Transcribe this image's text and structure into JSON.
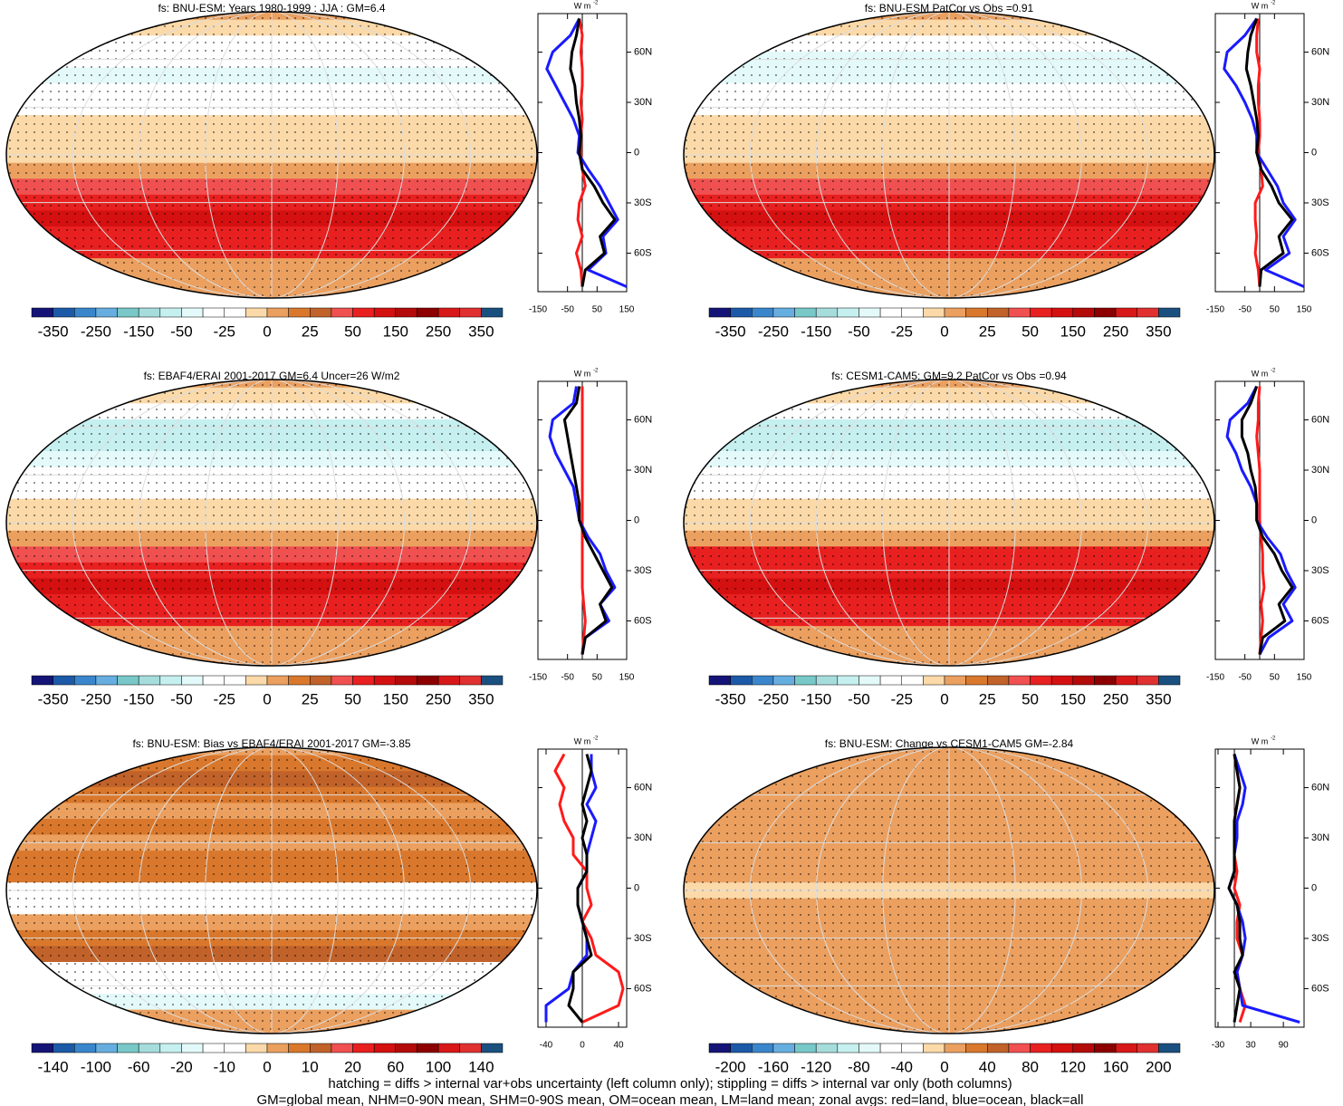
{
  "chart_data": [
    {
      "type": "zonal-map",
      "title": "fs: BNU-ESM: Years 1980-1999 : JJA : GM=6.4",
      "units": "W m",
      "units_sup": "-2",
      "colorbar_labels": [
        -350,
        -250,
        -150,
        -50,
        -25,
        0,
        25,
        50,
        150,
        250,
        350
      ],
      "lat": [
        80,
        70,
        60,
        50,
        40,
        30,
        20,
        10,
        0,
        -10,
        -20,
        -30,
        -40,
        -50,
        -60,
        -70,
        -80
      ],
      "xlim": [
        -150,
        150
      ],
      "xticks": [
        -150,
        -50,
        50,
        150
      ],
      "ylim": [
        -83,
        83
      ],
      "yticks": [
        {
          "value": 60,
          "label": "60N"
        },
        {
          "value": 30,
          "label": "30N"
        },
        0,
        {
          "value": -30,
          "label": "30S"
        },
        {
          "value": -60,
          "label": "60S"
        }
      ],
      "series": [
        {
          "name": "land",
          "color": "#ff1a1a",
          "values": [
            -10,
            0,
            -5,
            0,
            0,
            -5,
            0,
            -5,
            -5,
            0,
            10,
            -10,
            -15,
            0,
            -20,
            -5,
            0
          ]
        },
        {
          "name": "ocean",
          "color": "#1a1aff",
          "values": [
            -10,
            -40,
            -100,
            -120,
            -90,
            -60,
            -30,
            -10,
            -15,
            20,
            60,
            90,
            120,
            70,
            80,
            20,
            150
          ]
        },
        {
          "name": "all",
          "color": "#000000",
          "values": [
            -10,
            -20,
            -35,
            -40,
            -25,
            -20,
            -10,
            -5,
            -10,
            0,
            40,
            70,
            110,
            60,
            75,
            10,
            0
          ]
        }
      ]
    },
    {
      "type": "zonal-map",
      "title": "fs: BNU-ESM PatCor vs Obs =0.91",
      "units": "W m",
      "units_sup": "-2",
      "colorbar_labels": [
        -350,
        -250,
        -150,
        -50,
        -25,
        0,
        25,
        50,
        150,
        250,
        350
      ],
      "lat": [
        80,
        70,
        60,
        50,
        40,
        30,
        20,
        10,
        0,
        -10,
        -20,
        -30,
        -40,
        -50,
        -60,
        -70,
        -80
      ],
      "xlim": [
        -150,
        150
      ],
      "xticks": [
        -150,
        -50,
        50,
        150
      ],
      "ylim": [
        -83,
        83
      ],
      "yticks": [
        {
          "value": 60,
          "label": "60N"
        },
        {
          "value": 30,
          "label": "30N"
        },
        0,
        {
          "value": -30,
          "label": "30S"
        },
        {
          "value": -60,
          "label": "60S"
        }
      ],
      "series": [
        {
          "name": "land",
          "color": "#ff1a1a",
          "values": [
            -5,
            -10,
            -10,
            0,
            -5,
            -5,
            0,
            0,
            -5,
            5,
            10,
            -15,
            -15,
            -10,
            -15,
            -5,
            0
          ]
        },
        {
          "name": "ocean",
          "color": "#1a1aff",
          "values": [
            -10,
            -50,
            -110,
            -120,
            -80,
            -50,
            -25,
            -10,
            -10,
            25,
            60,
            80,
            120,
            80,
            100,
            20,
            150
          ]
        },
        {
          "name": "all",
          "color": "#000000",
          "values": [
            -10,
            -30,
            -40,
            -45,
            -30,
            -20,
            -10,
            -5,
            -10,
            5,
            40,
            65,
            110,
            65,
            80,
            5,
            0
          ]
        }
      ]
    },
    {
      "type": "zonal-map",
      "title": "fs: EBAF4/ERAI 2001-2017 GM=6.4 Uncer=26 W/m2",
      "units": "W m",
      "units_sup": "-2",
      "colorbar_labels": [
        -350,
        -250,
        -150,
        -50,
        -25,
        0,
        25,
        50,
        150,
        250,
        350
      ],
      "lat": [
        80,
        70,
        60,
        50,
        40,
        30,
        20,
        10,
        0,
        -10,
        -20,
        -30,
        -40,
        -50,
        -60,
        -70,
        -80
      ],
      "xlim": [
        -150,
        150
      ],
      "xticks": [
        -150,
        -50,
        50,
        150
      ],
      "ylim": [
        -83,
        83
      ],
      "yticks": [
        {
          "value": 60,
          "label": "60N"
        },
        {
          "value": 30,
          "label": "30N"
        },
        0,
        {
          "value": -30,
          "label": "30S"
        },
        {
          "value": -60,
          "label": "60S"
        }
      ],
      "series": [
        {
          "name": "land",
          "color": "#ff1a1a",
          "values": [
            0,
            0,
            0,
            0,
            0,
            0,
            0,
            0,
            0,
            0,
            0,
            0,
            0,
            5,
            10,
            5,
            0
          ]
        },
        {
          "name": "ocean",
          "color": "#1a1aff",
          "values": [
            -20,
            -30,
            -100,
            -110,
            -90,
            -60,
            -30,
            -20,
            -10,
            20,
            60,
            80,
            110,
            60,
            90,
            10,
            0
          ]
        },
        {
          "name": "all",
          "color": "#000000",
          "values": [
            -10,
            -20,
            -60,
            -50,
            -40,
            -30,
            -20,
            -10,
            -10,
            10,
            40,
            70,
            100,
            60,
            80,
            10,
            0
          ]
        }
      ]
    },
    {
      "type": "zonal-map",
      "title": "fs: CESM1-CAM5: GM=9.2 PatCor vs Obs =0.94",
      "units": "W m",
      "units_sup": "-2",
      "colorbar_labels": [
        -350,
        -250,
        -150,
        -50,
        -25,
        0,
        25,
        50,
        150,
        250,
        350
      ],
      "lat": [
        80,
        70,
        60,
        50,
        40,
        30,
        20,
        10,
        0,
        -10,
        -20,
        -30,
        -40,
        -50,
        -60,
        -70,
        -80
      ],
      "xlim": [
        -150,
        150
      ],
      "xticks": [
        -150,
        -50,
        50,
        150
      ],
      "ylim": [
        -83,
        83
      ],
      "yticks": [
        {
          "value": 60,
          "label": "60N"
        },
        {
          "value": 30,
          "label": "30N"
        },
        0,
        {
          "value": -30,
          "label": "30S"
        },
        {
          "value": -60,
          "label": "60S"
        }
      ],
      "series": [
        {
          "name": "land",
          "color": "#ff1a1a",
          "values": [
            0,
            -5,
            -5,
            -10,
            -5,
            0,
            0,
            0,
            0,
            5,
            10,
            10,
            15,
            5,
            10,
            5,
            0
          ]
        },
        {
          "name": "ocean",
          "color": "#1a1aff",
          "values": [
            -10,
            -40,
            -100,
            -110,
            -80,
            -60,
            -30,
            -10,
            -10,
            25,
            70,
            90,
            120,
            80,
            110,
            30,
            0
          ]
        },
        {
          "name": "all",
          "color": "#000000",
          "values": [
            -10,
            -30,
            -60,
            -60,
            -40,
            -30,
            -15,
            -10,
            -10,
            10,
            50,
            75,
            110,
            65,
            85,
            10,
            0
          ]
        }
      ]
    },
    {
      "type": "zonal-map",
      "title": "fs: BNU-ESM: Bias vs EBAF4/ERAI 2001-2017 GM=-3.85",
      "units": "W m",
      "units_sup": "-2",
      "colorbar_labels": [
        -140,
        -100,
        -60,
        -20,
        -10,
        0,
        10,
        20,
        60,
        100,
        140
      ],
      "lat": [
        80,
        70,
        60,
        50,
        40,
        30,
        20,
        10,
        0,
        -10,
        -20,
        -30,
        -40,
        -50,
        -60,
        -70,
        -80
      ],
      "xlim": [
        -49,
        49
      ],
      "xticks": [
        -40,
        0,
        40
      ],
      "ylim": [
        -83,
        83
      ],
      "yticks": [
        {
          "value": 60,
          "label": "60N"
        },
        {
          "value": 30,
          "label": "30N"
        },
        0,
        {
          "value": -30,
          "label": "30S"
        },
        {
          "value": -60,
          "label": "60S"
        }
      ],
      "series": [
        {
          "name": "land",
          "color": "#ff1a1a",
          "values": [
            -20,
            -30,
            -20,
            -25,
            -20,
            -10,
            -10,
            5,
            5,
            10,
            0,
            10,
            15,
            40,
            45,
            40,
            0
          ]
        },
        {
          "name": "ocean",
          "color": "#1a1aff",
          "values": [
            10,
            10,
            15,
            5,
            15,
            10,
            5,
            5,
            -5,
            -5,
            0,
            5,
            5,
            -10,
            -15,
            -40,
            -40
          ]
        },
        {
          "name": "all",
          "color": "#000000",
          "values": [
            5,
            10,
            5,
            0,
            5,
            0,
            5,
            5,
            -5,
            -5,
            0,
            5,
            10,
            -10,
            -10,
            -15,
            0
          ]
        }
      ]
    },
    {
      "type": "zonal-map",
      "title": "fs: BNU-ESM: Change vs CESM1-CAM5 GM=-2.84",
      "units": "W m",
      "units_sup": "-2",
      "colorbar_labels": [
        -200,
        -160,
        -120,
        -80,
        -40,
        0,
        40,
        80,
        120,
        160,
        200
      ],
      "lat": [
        80,
        70,
        60,
        50,
        40,
        30,
        20,
        10,
        0,
        -10,
        -20,
        -30,
        -40,
        -50,
        -60,
        -70,
        -80
      ],
      "xlim": [
        -35,
        128
      ],
      "xticks": [
        -30,
        30,
        90
      ],
      "ylim": [
        -83,
        83
      ],
      "yticks": [
        {
          "value": 60,
          "label": "60N"
        },
        {
          "value": 30,
          "label": "30N"
        },
        0,
        {
          "value": -30,
          "label": "30S"
        },
        {
          "value": -60,
          "label": "60S"
        }
      ],
      "series": [
        {
          "name": "land",
          "color": "#ff1a1a",
          "values": [
            0,
            5,
            10,
            5,
            0,
            0,
            0,
            5,
            0,
            10,
            5,
            5,
            15,
            5,
            10,
            20,
            10
          ]
        },
        {
          "name": "ocean",
          "color": "#1a1aff",
          "values": [
            0,
            10,
            20,
            15,
            5,
            5,
            0,
            0,
            -10,
            5,
            15,
            20,
            15,
            5,
            10,
            15,
            120
          ]
        },
        {
          "name": "all",
          "color": "#000000",
          "values": [
            0,
            5,
            10,
            5,
            0,
            0,
            0,
            0,
            -10,
            5,
            10,
            10,
            15,
            0,
            10,
            5,
            0
          ]
        }
      ]
    }
  ],
  "colorbar_colors": [
    "#141478",
    "#1c5aa8",
    "#3a86cc",
    "#66aee0",
    "#78c8c8",
    "#a6dcdc",
    "#c6f0f0",
    "#e4fafa",
    "#ffffff",
    "#ffffff",
    "#fbd9a8",
    "#eba060",
    "#d9782c",
    "#c0622a",
    "#f05050",
    "#e82020",
    "#d41010",
    "#b40a0a",
    "#8c0000",
    "#d81818",
    "#e03030",
    "#1a5080"
  ],
  "notes": [
    "hatching = diffs > internal var+obs uncertainty (left column only); stippling = diffs > internal var only (both columns)",
    "GM=global mean, NHM=0-90N mean, SHM=0-90S mean, OM=ocean mean, LM=land mean; zonal avgs: red=land, blue=ocean, black=all"
  ]
}
